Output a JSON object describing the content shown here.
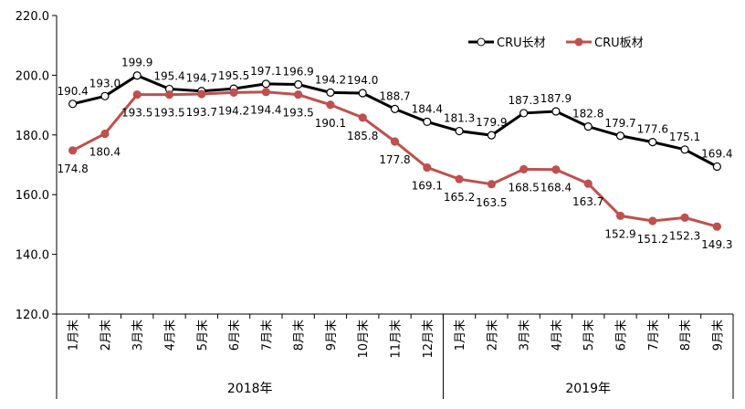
{
  "chart_data": {
    "type": "line",
    "title": "",
    "xlabel": "",
    "ylabel": "",
    "ylim": [
      120,
      220
    ],
    "yticks": [
      "120.0",
      "140.0",
      "160.0",
      "180.0",
      "200.0",
      "220.0"
    ],
    "grid": false,
    "legend_position": "top-right",
    "categories": [
      "1月末",
      "2月末",
      "3月末",
      "4月末",
      "5月末",
      "6月末",
      "7月末",
      "8月末",
      "9月末",
      "10月末",
      "11月末",
      "12月末",
      "1月末",
      "2月末",
      "3月末",
      "4月末",
      "5月末",
      "6月末",
      "7月末",
      "8月末",
      "9月末"
    ],
    "groups": [
      {
        "label": "2018年",
        "count": 12
      },
      {
        "label": "2019年",
        "count": 9
      }
    ],
    "series": [
      {
        "name": "CRU长材",
        "color": "#000000",
        "marker": "hollow-circle",
        "values": [
          190.4,
          193.0,
          199.9,
          195.4,
          194.7,
          195.5,
          197.1,
          196.9,
          194.2,
          194.0,
          188.7,
          184.4,
          181.3,
          179.9,
          187.3,
          187.9,
          182.8,
          179.7,
          177.6,
          175.1,
          169.4
        ]
      },
      {
        "name": "CRU板材",
        "color": "#c0504d",
        "marker": "filled-circle",
        "values": [
          174.8,
          180.4,
          193.5,
          193.5,
          193.7,
          194.2,
          194.4,
          193.5,
          190.1,
          185.8,
          177.8,
          169.1,
          165.2,
          163.5,
          168.5,
          168.4,
          163.7,
          152.9,
          151.2,
          152.3,
          149.3
        ]
      }
    ]
  }
}
